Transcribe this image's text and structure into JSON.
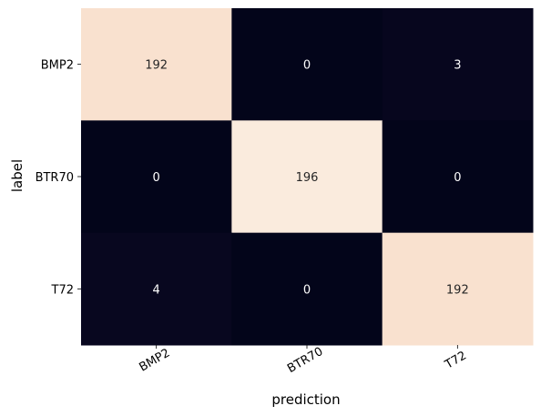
{
  "chart_data": {
    "type": "heatmap",
    "title": "",
    "xlabel": "prediction",
    "ylabel": "label",
    "x_categories": [
      "BMP2",
      "BTR70",
      "T72"
    ],
    "y_categories": [
      "BMP2",
      "BTR70",
      "T72"
    ],
    "values": [
      [
        192,
        0,
        3
      ],
      [
        0,
        196,
        0
      ],
      [
        4,
        0,
        192
      ]
    ],
    "colormap": "rocket",
    "colorbar": false,
    "annotations": true,
    "grid": false,
    "colors": {
      "low": "#03051a",
      "high": "#faebdd",
      "dark_text": "#262626",
      "light_text": "#ffffff"
    }
  }
}
